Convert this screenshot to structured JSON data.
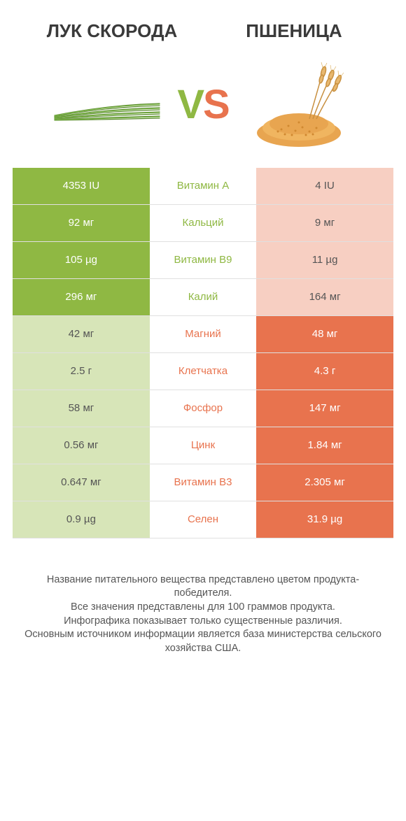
{
  "titles": {
    "left": "ЛУК СКОРОДА",
    "right": "ПШЕНИЦА"
  },
  "vs": {
    "v": "V",
    "s": "S"
  },
  "colors": {
    "green": "#8fb843",
    "green_pale": "#d7e5b8",
    "orange": "#e8734e",
    "orange_pale": "#f7cfc2",
    "border": "#e0e0e0",
    "text_dark": "#3a3a3a",
    "text_body": "#555555",
    "bg": "#ffffff"
  },
  "rows": [
    {
      "label": "Витамин A",
      "left": "4353 IU",
      "right": "4 IU",
      "winner": "left"
    },
    {
      "label": "Кальций",
      "left": "92 мг",
      "right": "9 мг",
      "winner": "left"
    },
    {
      "label": "Витамин B9",
      "left": "105 µg",
      "right": "11 µg",
      "winner": "left"
    },
    {
      "label": "Калий",
      "left": "296 мг",
      "right": "164 мг",
      "winner": "left"
    },
    {
      "label": "Магний",
      "left": "42 мг",
      "right": "48 мг",
      "winner": "right"
    },
    {
      "label": "Клетчатка",
      "left": "2.5 г",
      "right": "4.3 г",
      "winner": "right"
    },
    {
      "label": "Фосфор",
      "left": "58 мг",
      "right": "147 мг",
      "winner": "right"
    },
    {
      "label": "Цинк",
      "left": "0.56 мг",
      "right": "1.84 мг",
      "winner": "right"
    },
    {
      "label": "Витамин B3",
      "left": "0.647 мг",
      "right": "2.305 мг",
      "winner": "right"
    },
    {
      "label": "Селен",
      "left": "0.9 µg",
      "right": "31.9 µg",
      "winner": "right"
    }
  ],
  "footer": {
    "line1": "Название питательного вещества представлено цветом продукта-победителя.",
    "line2": "Все значения представлены для 100 граммов продукта.",
    "line3": "Инфографика показывает только существенные различия.",
    "line4": "Основным источником информации является база министерства сельского хозяйства США."
  }
}
